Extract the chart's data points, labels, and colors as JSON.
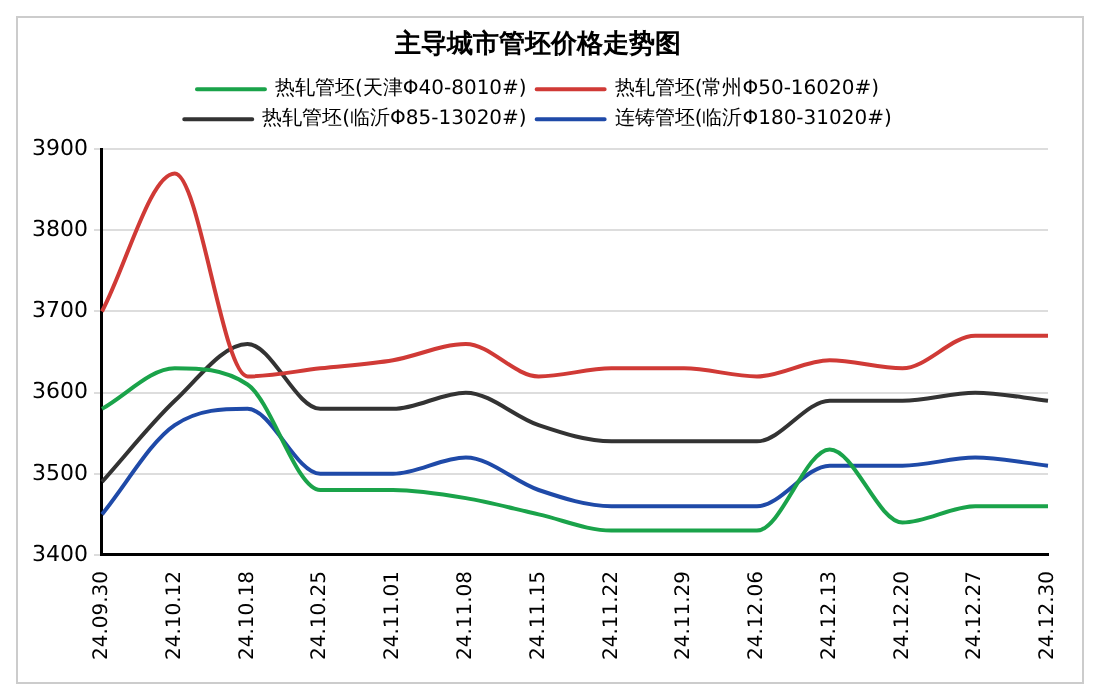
{
  "chart_data": {
    "type": "line",
    "title": "主导城市管坯价格走势图",
    "categories": [
      "24.09.30",
      "24.10.12",
      "24.10.18",
      "24.10.25",
      "24.11.01",
      "24.11.08",
      "24.11.15",
      "24.11.22",
      "24.11.29",
      "24.12.06",
      "24.12.13",
      "24.12.20",
      "24.12.27",
      "24.12.30"
    ],
    "series": [
      {
        "name": "热轧管坯(天津Φ40-8010#)",
        "color": "#1aa34a",
        "values": [
          3580,
          3630,
          3610,
          3480,
          3480,
          3470,
          3450,
          3430,
          3430,
          3430,
          3530,
          3440,
          3460,
          3460
        ]
      },
      {
        "name": "热轧管坯(常州Φ50-16020#)",
        "color": "#d03a36",
        "values": [
          3700,
          3870,
          3620,
          3630,
          3640,
          3660,
          3620,
          3630,
          3630,
          3620,
          3640,
          3630,
          3670,
          3670
        ]
      },
      {
        "name": "热轧管坯(临沂Φ85-13020#)",
        "color": "#333333",
        "values": [
          3490,
          3590,
          3660,
          3580,
          3580,
          3600,
          3560,
          3540,
          3540,
          3540,
          3590,
          3590,
          3600,
          3590
        ]
      },
      {
        "name": "连铸管坯(临沂Φ180-31020#)",
        "color": "#1f4aa8",
        "values": [
          3450,
          3560,
          3580,
          3500,
          3500,
          3520,
          3480,
          3460,
          3460,
          3460,
          3510,
          3510,
          3520,
          3510
        ]
      }
    ],
    "ylim": [
      3400,
      3900
    ],
    "yticks": [
      3400,
      3500,
      3600,
      3700,
      3800,
      3900
    ],
    "grid": "y",
    "legend": "top",
    "marker": "none",
    "line_style": "solid"
  }
}
